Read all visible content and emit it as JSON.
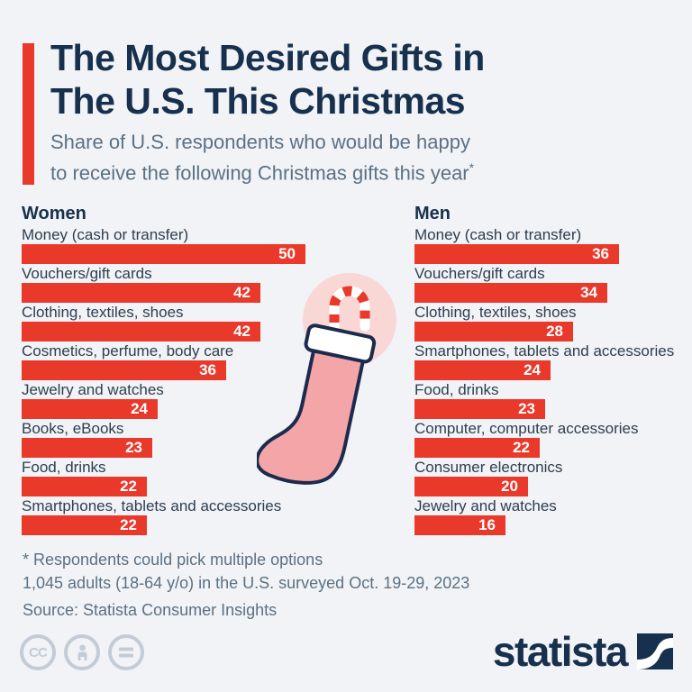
{
  "header": {
    "title": [
      "The Most Desired Gifts in",
      "The U.S. This Christmas"
    ],
    "subtitle": [
      "Share of U.S. respondents who would be happy",
      "to receive the following Christmas gifts this year"
    ],
    "subtitle_asterisk": "*"
  },
  "chart_data": {
    "type": "bar",
    "orientation": "horizontal",
    "value_unit": "percent of respondents",
    "value_range": [
      0,
      50
    ],
    "bar_color": "#e9392b",
    "value_label_color": "#ffffff",
    "groups": [
      {
        "name": "Women",
        "items": [
          {
            "label": "Money (cash or transfer)",
            "value": 50
          },
          {
            "label": "Vouchers/gift cards",
            "value": 42
          },
          {
            "label": "Clothing, textiles, shoes",
            "value": 42
          },
          {
            "label": "Cosmetics, perfume, body care",
            "value": 36
          },
          {
            "label": "Jewelry and watches",
            "value": 24
          },
          {
            "label": "Books, eBooks",
            "value": 23
          },
          {
            "label": "Food, drinks",
            "value": 22
          },
          {
            "label": "Smartphones, tablets and accessories",
            "value": 22
          }
        ]
      },
      {
        "name": "Men",
        "items": [
          {
            "label": "Money (cash or transfer)",
            "value": 36
          },
          {
            "label": "Vouchers/gift cards",
            "value": 34
          },
          {
            "label": "Clothing, textiles, shoes",
            "value": 28
          },
          {
            "label": "Smartphones, tablets and accessories",
            "value": 24
          },
          {
            "label": "Food, drinks",
            "value": 23
          },
          {
            "label": "Computer, computer accessories",
            "value": 22
          },
          {
            "label": "Consumer electronics",
            "value": 20
          },
          {
            "label": "Jewelry and watches",
            "value": 16
          }
        ]
      }
    ]
  },
  "footnotes": {
    "line1": "* Respondents could pick multiple options",
    "line2": "1,045 adults (18-64 y/o) in the U.S. surveyed Oct. 19-29, 2023",
    "line3": "Source: Statista Consumer Insights"
  },
  "branding": {
    "logo_text": "statista",
    "license_cc_text": "CC",
    "license_icons": [
      "cc-icon",
      "attribution-person-icon",
      "no-derivatives-equals-icon"
    ]
  },
  "illustration": {
    "name": "christmas-stocking-with-candy-cane",
    "colors": {
      "circle": "#f8d7d5",
      "sock": "#f3a5a8",
      "cuff": "#ffffff",
      "outline": "#1c2b4d",
      "candy_red": "#e9392b"
    }
  },
  "colors": {
    "background": "#f1f3f6",
    "accent_red": "#e9392b",
    "title_navy": "#17304d",
    "subtitle_gray": "#5b7183",
    "label_dark": "#2e3e50"
  }
}
